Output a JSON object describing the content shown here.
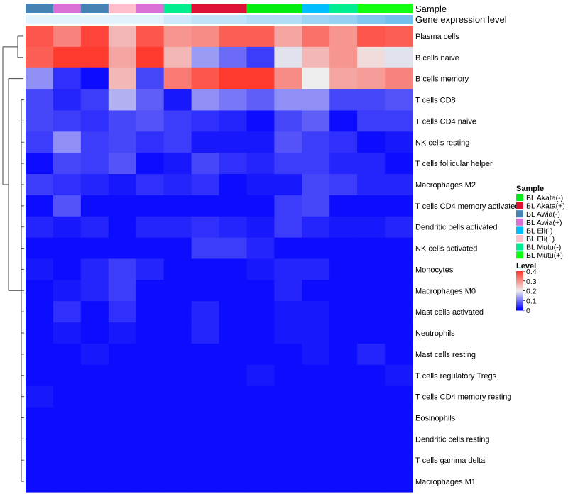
{
  "chart_data": {
    "type": "heatmap",
    "annotation_labels": [
      "Sample",
      "Gene expression level"
    ],
    "columns": [
      "BL Awia(-)",
      "BL Awia(+)",
      "BL Awia(-)",
      "BL Eli(+)",
      "BL Awia(+)",
      "BL Mutu(-)",
      "BL Akata(+)",
      "BL Akata(+)",
      "BL Akata(-)",
      "BL Akata(-)",
      "BL Eli(-)",
      "BL Mutu(-)",
      "BL Mutu(+)",
      "BL Mutu(+)"
    ],
    "gene_expression_level": [
      0.05,
      0.05,
      0.05,
      0.05,
      0.05,
      0.2,
      0.3,
      0.3,
      0.4,
      0.4,
      0.55,
      0.6,
      0.75,
      0.85
    ],
    "rows": [
      "Plasma cells",
      "B cells naive",
      "B cells memory",
      "T cells CD8",
      "T cells CD4 naive",
      "NK cells resting",
      "T cells follicular helper",
      "Macrophages M2",
      "T cells CD4 memory activated",
      "Dendritic cells activated",
      "NK cells activated",
      "Monocytes",
      "Macrophages M0",
      "Mast cells activated",
      "Neutrophils",
      "Mast cells resting",
      "T cells regulatory  Tregs",
      "T cells CD4 memory resting",
      "Eosinophils",
      "Dendritic cells resting",
      "T cells gamma delta",
      "Macrophages M1"
    ],
    "values": [
      [
        0.37,
        0.32,
        0.39,
        0.26,
        0.37,
        0.3,
        0.31,
        0.36,
        0.36,
        0.28,
        0.34,
        0.3,
        0.37,
        0.36
      ],
      [
        0.36,
        0.4,
        0.4,
        0.28,
        0.4,
        0.26,
        0.13,
        0.09,
        0.05,
        0.19,
        0.26,
        0.3,
        0.22,
        0.19
      ],
      [
        0.12,
        0.04,
        0.01,
        0.26,
        0.06,
        0.33,
        0.37,
        0.4,
        0.4,
        0.31,
        0.2,
        0.28,
        0.29,
        0.32
      ],
      [
        0.06,
        0.03,
        0.05,
        0.15,
        0.08,
        0.02,
        0.12,
        0.1,
        0.08,
        0.12,
        0.12,
        0.06,
        0.06,
        0.07
      ],
      [
        0.06,
        0.05,
        0.04,
        0.06,
        0.07,
        0.05,
        0.04,
        0.03,
        0.01,
        0.06,
        0.08,
        0.01,
        0.05,
        0.05
      ],
      [
        0.05,
        0.12,
        0.05,
        0.06,
        0.04,
        0.05,
        0.02,
        0.02,
        0.02,
        0.07,
        0.05,
        0.04,
        0.01,
        0.02
      ],
      [
        0.01,
        0.06,
        0.05,
        0.07,
        0.01,
        0.02,
        0.06,
        0.04,
        0.03,
        0.05,
        0.05,
        0.03,
        0.03,
        0.01
      ],
      [
        0.05,
        0.04,
        0.03,
        0.02,
        0.04,
        0.03,
        0.04,
        0.01,
        0.02,
        0.02,
        0.06,
        0.05,
        0.03,
        0.03
      ],
      [
        0.01,
        0.07,
        0.01,
        0.01,
        0.01,
        0.01,
        0.01,
        0.01,
        0.01,
        0.05,
        0.06,
        0.01,
        0.01,
        0.01
      ],
      [
        0.03,
        0.02,
        0.03,
        0.01,
        0.03,
        0.03,
        0.04,
        0.03,
        0.02,
        0.05,
        0.03,
        0.02,
        0.02,
        0.03
      ],
      [
        0.01,
        0.01,
        0.01,
        0.01,
        0.01,
        0.01,
        0.05,
        0.05,
        0.03,
        0.01,
        0.01,
        0.01,
        0.01,
        0.01
      ],
      [
        0.02,
        0.01,
        0.03,
        0.05,
        0.03,
        0.01,
        0.01,
        0.01,
        0.02,
        0.03,
        0.03,
        0.01,
        0.01,
        0.01
      ],
      [
        0.01,
        0.02,
        0.03,
        0.05,
        0.01,
        0.01,
        0.01,
        0.01,
        0.01,
        0.03,
        0.01,
        0.01,
        0.01,
        0.01
      ],
      [
        0.01,
        0.04,
        0.01,
        0.04,
        0.01,
        0.01,
        0.03,
        0.01,
        0.01,
        0.02,
        0.02,
        0.01,
        0.01,
        0.01
      ],
      [
        0.01,
        0.02,
        0.01,
        0.02,
        0.01,
        0.01,
        0.03,
        0.01,
        0.01,
        0.02,
        0.02,
        0.01,
        0.01,
        0.01
      ],
      [
        0.01,
        0.01,
        0.02,
        0.01,
        0.01,
        0.01,
        0.01,
        0.01,
        0.01,
        0.01,
        0.02,
        0.01,
        0.03,
        0.01
      ],
      [
        0.01,
        0.01,
        0.01,
        0.01,
        0.01,
        0.01,
        0.01,
        0.01,
        0.02,
        0.01,
        0.01,
        0.01,
        0.01,
        0.02
      ],
      [
        0.02,
        0.01,
        0.01,
        0.01,
        0.01,
        0.01,
        0.01,
        0.01,
        0.01,
        0.01,
        0.01,
        0.01,
        0.01,
        0.01
      ],
      [
        0.01,
        0.01,
        0.01,
        0.01,
        0.01,
        0.01,
        0.01,
        0.01,
        0.01,
        0.01,
        0.01,
        0.01,
        0.01,
        0.01
      ],
      [
        0.01,
        0.01,
        0.01,
        0.01,
        0.01,
        0.01,
        0.01,
        0.01,
        0.01,
        0.01,
        0.01,
        0.01,
        0.01,
        0.01
      ],
      [
        0.01,
        0.01,
        0.01,
        0.01,
        0.01,
        0.01,
        0.01,
        0.01,
        0.01,
        0.01,
        0.01,
        0.01,
        0.01,
        0.01
      ],
      [
        0.01,
        0.01,
        0.01,
        0.01,
        0.01,
        0.01,
        0.01,
        0.01,
        0.01,
        0.01,
        0.01,
        0.01,
        0.01,
        0.01
      ]
    ],
    "color_scale": {
      "low": "#0000ff",
      "mid": "#eeeeee",
      "high": "#ff3b30",
      "range": [
        0,
        0.4
      ]
    },
    "legend_sample": {
      "title": "Sample",
      "entries": [
        {
          "label": "BL Akata(-)",
          "color": "#00ee11"
        },
        {
          "label": "BL Akata(+)",
          "color": "#dd1133"
        },
        {
          "label": "BL Awia(-)",
          "color": "#4682b4"
        },
        {
          "label": "BL Awia(+)",
          "color": "#da70d6"
        },
        {
          "label": "BL Eli(-)",
          "color": "#00bfff"
        },
        {
          "label": "BL Eli(+)",
          "color": "#ffc0cb"
        },
        {
          "label": "BL Mutu(-)",
          "color": "#00ee90"
        },
        {
          "label": "BL Mutu(+)",
          "color": "#11ff11"
        }
      ]
    },
    "legend_level": {
      "title": "Level",
      "ticks": [
        "0.4",
        "0.3",
        "0.2",
        "0.1",
        "0"
      ],
      "tick_values": [
        0.4,
        0.3,
        0.2,
        0.1,
        0
      ]
    },
    "row_dendrogram": "shown",
    "legend_placement": "right"
  }
}
